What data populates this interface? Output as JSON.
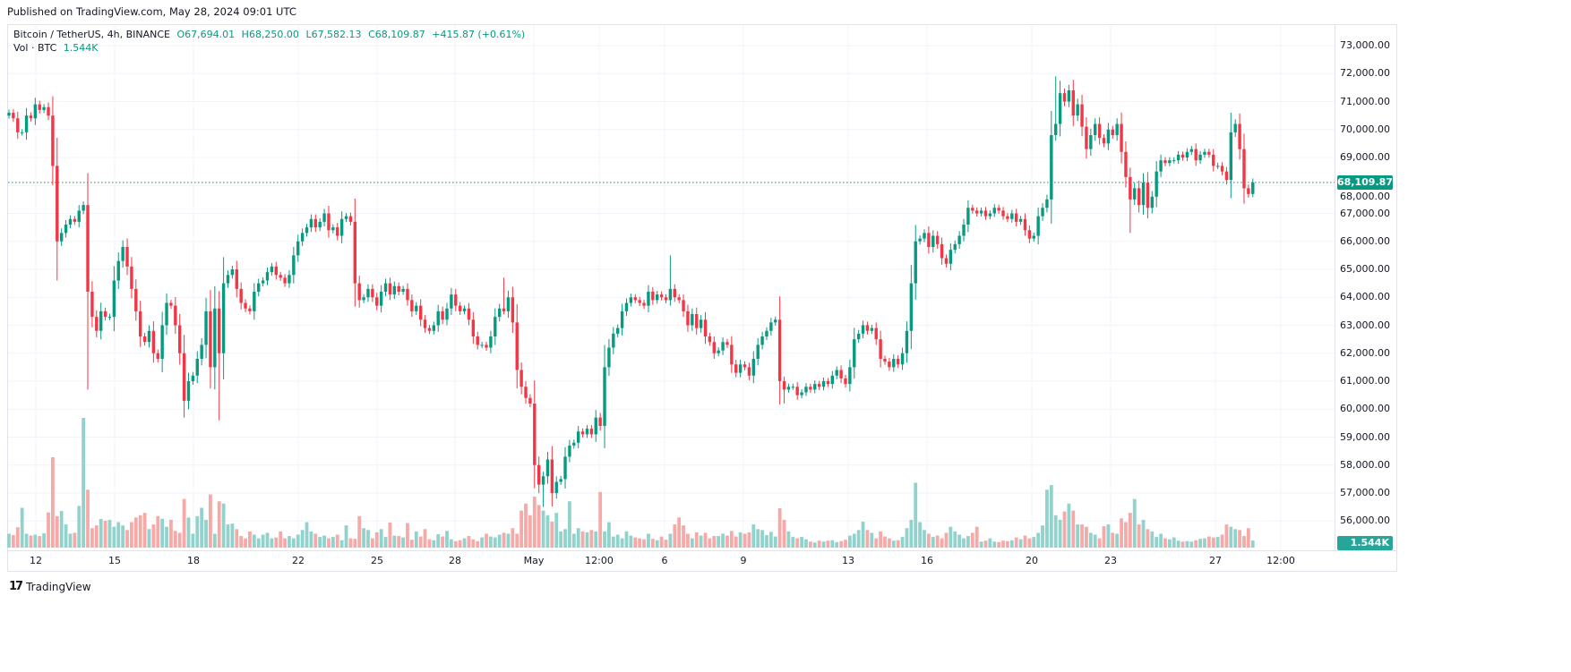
{
  "published": "Published on TradingView.com, May 28, 2024 09:01 UTC",
  "legend": {
    "symbol": "Bitcoin / TetherUS, 4h, BINANCE",
    "open": "O67,694.01",
    "high": "H68,250.00",
    "low": "L67,582.13",
    "close": "C68,109.87",
    "change": "+415.87 (+0.61%)",
    "vol_label": "Vol · BTC",
    "vol_value": "1.544K"
  },
  "last_price_badge": "68,109.87",
  "last_volume_badge": "1.544K",
  "footer_brand": "TradingView",
  "colors": {
    "up": "#089981",
    "down": "#f23645",
    "vol_up": "#92d2cc",
    "vol_down": "#f7a9a7",
    "grid": "#f0f3fa",
    "badge_volume": "#26a69a"
  },
  "chart_data": {
    "type": "candlestick",
    "symbol": "BTCUSDT",
    "interval": "4h",
    "first_candle": "Apr 11 00:00",
    "price_axis": {
      "ylim": [
        55500,
        73500
      ],
      "ticks": [
        "73,000.00",
        "72,000.00",
        "71,000.00",
        "70,000.00",
        "69,000.00",
        "68,000.00",
        "67,000.00",
        "66,000.00",
        "65,000.00",
        "64,000.00",
        "63,000.00",
        "62,000.00",
        "61,000.00",
        "60,000.00",
        "59,000.00",
        "58,000.00",
        "57,000.00",
        "56,000.00"
      ]
    },
    "time_axis_labels": [
      "12",
      "15",
      "18",
      "22",
      "25",
      "28",
      "May",
      "12:00",
      "6",
      "9",
      "13",
      "16",
      "20",
      "23",
      "27",
      "12:00"
    ],
    "grid": true,
    "first_open": 70500,
    "close": [
      70600,
      70400,
      69900,
      69900,
      70500,
      70400,
      70900,
      70700,
      70800,
      70500,
      68700,
      66000,
      66300,
      66600,
      66800,
      66700,
      67100,
      67300,
      64200,
      63300,
      62800,
      63500,
      63300,
      63300,
      64600,
      65300,
      65800,
      65100,
      64300,
      63500,
      62600,
      62400,
      62800,
      62000,
      61800,
      63000,
      63800,
      63700,
      63000,
      62000,
      60300,
      61000,
      61200,
      61800,
      62300,
      63500,
      61500,
      63600,
      62000,
      64500,
      64800,
      65000,
      64300,
      63800,
      63600,
      63500,
      64200,
      64500,
      64600,
      64900,
      65100,
      64800,
      64700,
      64500,
      64800,
      65500,
      66000,
      66300,
      66500,
      66800,
      66500,
      66700,
      67000,
      66400,
      66500,
      66200,
      66800,
      66900,
      66700,
      64500,
      63900,
      64000,
      64300,
      64000,
      63700,
      64200,
      64500,
      64100,
      64400,
      64200,
      64300,
      63900,
      63500,
      63700,
      63200,
      62900,
      62800,
      63000,
      63500,
      63200,
      63600,
      64100,
      63700,
      63500,
      63600,
      63200,
      62600,
      62300,
      62300,
      62200,
      62600,
      63300,
      63600,
      63500,
      64000,
      63100,
      61400,
      60800,
      60400,
      60200,
      58000,
      57300,
      57600,
      58200,
      57000,
      57400,
      57500,
      58300,
      58700,
      58800,
      59200,
      59100,
      59300,
      59100,
      59700,
      59400,
      61500,
      62200,
      62700,
      62900,
      63500,
      63800,
      64000,
      63900,
      63800,
      63700,
      64200,
      63900,
      64100,
      64000,
      63900,
      64300,
      64000,
      63900,
      63500,
      63000,
      63400,
      62900,
      63200,
      62600,
      62400,
      62000,
      62100,
      62400,
      62300,
      61600,
      61300,
      61600,
      61500,
      61200,
      61800,
      62300,
      62600,
      62800,
      63100,
      63200,
      61000,
      60700,
      60800,
      60800,
      60500,
      60600,
      60800,
      60700,
      60900,
      60800,
      61000,
      60900,
      61200,
      61400,
      61100,
      60900,
      61500,
      62500,
      62700,
      63000,
      62800,
      62900,
      62500,
      61800,
      61700,
      61500,
      61800,
      61600,
      62000,
      62800,
      64500,
      66000,
      66100,
      66300,
      65800,
      66200,
      65900,
      65400,
      65200,
      65700,
      65900,
      66200,
      66600,
      67200,
      67100,
      67000,
      67100,
      66900,
      67000,
      67200,
      67100,
      66900,
      66800,
      67000,
      66700,
      66800,
      66400,
      66100,
      66200,
      66900,
      67200,
      67500,
      69800,
      70200,
      71300,
      71000,
      71400,
      70500,
      70900,
      70100,
      69300,
      69800,
      70200,
      69700,
      69500,
      70000,
      69800,
      70200,
      69200,
      68300,
      67500,
      67900,
      67300,
      68100,
      67200,
      67600,
      68500,
      68900,
      68800,
      68900,
      68900,
      69100,
      69000,
      69200,
      69300,
      68900,
      69100,
      69200,
      69100,
      68700,
      68700,
      68500,
      68200,
      69900,
      70200,
      69300,
      67900,
      67694.01,
      68109.87
    ],
    "high_overrides": {
      "113": 64700,
      "151": 65500,
      "239": 71900,
      "279": 70600,
      "284": 68250
    },
    "low_overrides": {
      "11": 64600,
      "18": 60700,
      "40": 59700,
      "48": 59600,
      "122": 56500,
      "177": 60200,
      "256": 66300,
      "284": 67582.13
    },
    "volume_k": [
      3.0,
      2.7,
      4.4,
      8.6,
      3.0,
      2.6,
      2.8,
      2.5,
      3.1,
      7.6,
      19.5,
      6.8,
      7.9,
      5.0,
      3.0,
      3.2,
      9.0,
      28.0,
      12.5,
      4.2,
      4.8,
      6.2,
      5.8,
      6.0,
      4.5,
      5.5,
      4.8,
      3.8,
      5.5,
      6.5,
      7.0,
      7.5,
      4.0,
      5.0,
      6.8,
      6.2,
      4.5,
      6.0,
      3.6,
      3.2,
      10.5,
      6.5,
      3.0,
      6.8,
      8.6,
      6.0,
      11.5,
      3.0,
      10.0,
      9.5,
      5.0,
      5.2,
      4.0,
      2.5,
      2.0,
      3.5,
      2.8,
      2.0,
      2.8,
      3.2,
      2.0,
      2.2,
      3.5,
      2.0,
      2.5,
      2.0,
      2.8,
      3.8,
      5.5,
      3.5,
      3.0,
      2.3,
      2.6,
      2.0,
      2.3,
      2.8,
      1.6,
      4.8,
      2.0,
      1.9,
      6.8,
      4.2,
      3.8,
      2.0,
      3.3,
      4.0,
      2.3,
      5.4,
      2.6,
      2.5,
      2.2,
      5.3,
      1.7,
      3.5,
      2.4,
      4.0,
      1.8,
      1.6,
      2.9,
      2.4,
      3.6,
      1.8,
      1.4,
      1.6,
      2.0,
      2.5,
      1.8,
      1.4,
      2.2,
      3.0,
      2.4,
      2.2,
      2.8,
      3.2,
      3.0,
      4.2,
      3.0,
      8.0,
      9.5,
      7.0,
      11.0,
      9.2,
      8.0,
      7.0,
      5.6,
      7.5,
      3.5,
      4.0,
      10.0,
      3.0,
      4.2,
      3.5,
      3.3,
      3.8,
      3.5,
      12.0,
      3.5,
      5.5,
      2.4,
      2.8,
      2.0,
      3.5,
      2.6,
      2.2,
      2.0,
      1.8,
      3.0,
      1.9,
      1.6,
      2.4,
      1.7,
      3.0,
      5.0,
      6.5,
      4.8,
      3.0,
      2.0,
      3.3,
      2.6,
      3.2,
      2.0,
      2.5,
      2.5,
      3.0,
      2.6,
      3.6,
      2.4,
      3.3,
      3.0,
      3.3,
      5.0,
      4.0,
      3.8,
      2.7,
      3.4,
      2.4,
      8.5,
      6.0,
      3.5,
      2.3,
      2.0,
      2.3,
      1.8,
      1.3,
      1.1,
      1.5,
      1.3,
      1.5,
      1.6,
      1.2,
      1.4,
      1.7,
      2.6,
      3.0,
      3.8,
      5.6,
      3.8,
      3.2,
      2.0,
      3.5,
      2.4,
      2.0,
      1.5,
      1.6,
      2.3,
      4.2,
      6.0,
      14.0,
      5.5,
      3.8,
      3.0,
      2.3,
      2.6,
      2.0,
      3.2,
      4.5,
      3.5,
      2.8,
      2.0,
      2.5,
      3.2,
      4.5,
      1.3,
      1.5,
      2.0,
      1.3,
      1.2,
      1.5,
      1.4,
      1.6,
      2.2,
      1.8,
      2.6,
      2.0,
      2.3,
      3.2,
      4.8,
      12.5,
      13.5,
      7.0,
      6.0,
      7.8,
      9.5,
      8.0,
      5.0,
      5.0,
      4.5,
      3.2,
      2.8,
      2.0,
      4.6,
      5.0,
      3.2,
      3.0,
      6.3,
      5.5,
      7.5,
      10.5,
      5.0,
      6.0,
      4.0,
      3.5,
      2.3,
      3.0,
      2.0,
      1.8,
      2.2,
      1.5,
      1.3,
      1.4,
      1.3,
      1.6,
      1.9,
      2.0,
      2.4,
      2.2,
      2.3,
      2.8,
      5.0,
      4.5,
      4.0,
      3.8,
      2.5,
      4.2,
      1.544
    ]
  }
}
